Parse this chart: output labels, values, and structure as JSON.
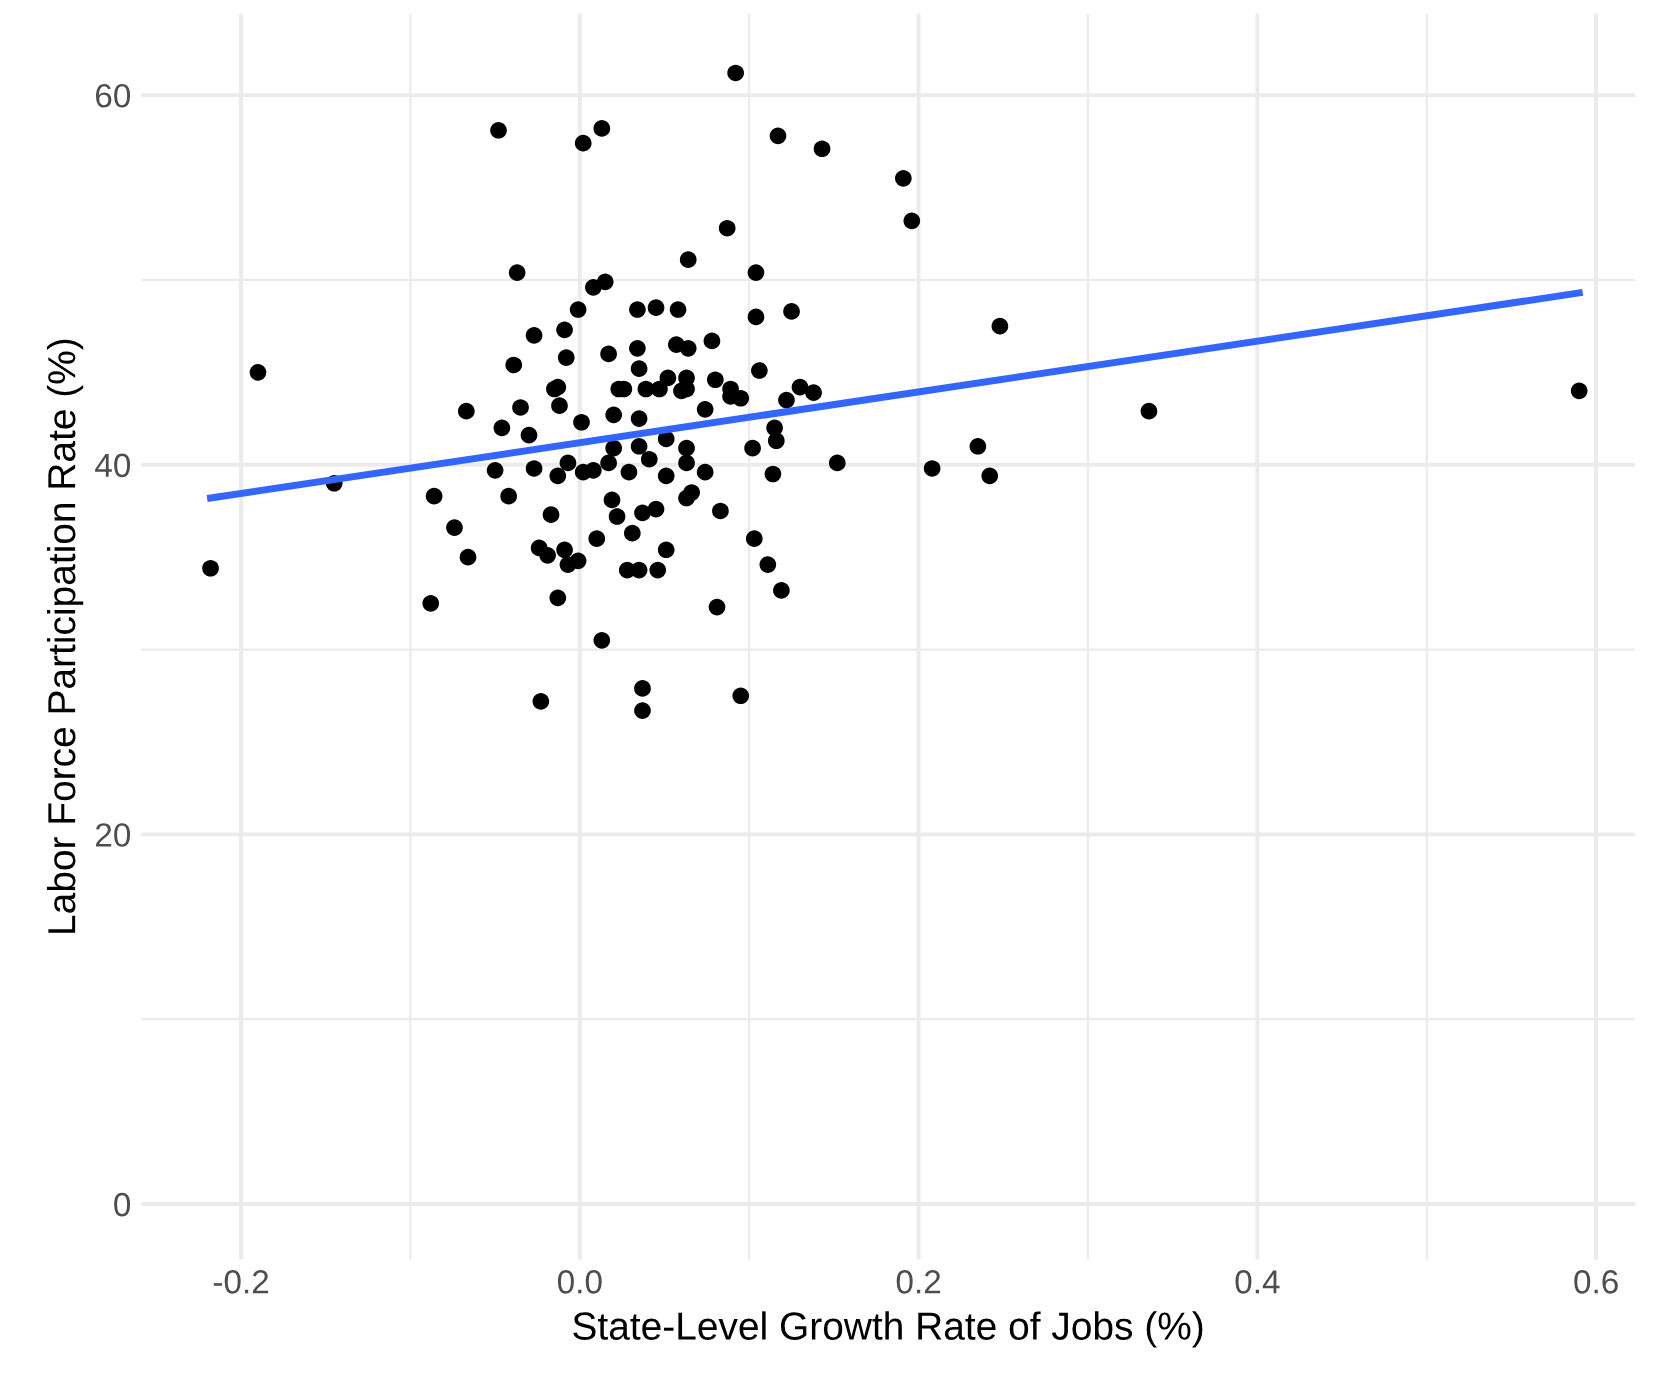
{
  "chart_data": {
    "type": "scatter",
    "xlabel": "State-Level Growth Rate of Jobs (%)",
    "ylabel": "Labor Force Participation Rate (%)",
    "xlim": [
      -0.259,
      0.623
    ],
    "ylim": [
      -3,
      64.4
    ],
    "xticks": [
      {
        "value": -0.2,
        "label": "-0.2"
      },
      {
        "value": -0.1,
        "label": null
      },
      {
        "value": 0,
        "label": "0.0"
      },
      {
        "value": 0.1,
        "label": null
      },
      {
        "value": 0.2,
        "label": "0.2"
      },
      {
        "value": 0.3,
        "label": null
      },
      {
        "value": 0.4,
        "label": "0.4"
      },
      {
        "value": 0.5,
        "label": null
      },
      {
        "value": 0.6,
        "label": "0.6"
      }
    ],
    "yticks": [
      0,
      {
        "value": 10,
        "label": null
      },
      20,
      {
        "value": 30,
        "label": null
      },
      40,
      {
        "value": 50,
        "label": null
      },
      60
    ],
    "grid": true,
    "series": [
      {
        "color": "#000000",
        "marker": "circle",
        "x": [
          -0.218,
          -0.19,
          -0.145,
          -0.067,
          -0.035,
          -0.046,
          -0.03,
          -0.05,
          -0.086,
          -0.042,
          -0.027,
          -0.013,
          -0.007,
          0.002,
          0.008,
          0.017,
          0.001,
          -0.012,
          -0.015,
          0.02,
          0.035,
          0.026,
          0.039,
          0.02,
          0.035,
          0.029,
          0.041,
          0.051,
          0.051,
          0.063,
          0.063,
          0.074,
          0.074,
          0.06,
          0.089,
          0.095,
          0.122,
          0.115,
          0.116,
          0.102,
          0.114,
          0.138,
          0.152,
          0.208,
          0.235,
          0.242,
          0.019,
          0.022,
          0.037,
          0.045,
          0.031,
          0.063,
          0.066,
          0.083,
          -0.017,
          0.01,
          -0.024,
          -0.019,
          -0.009,
          -0.007,
          -0.001,
          -0.074,
          -0.066,
          0.028,
          0.035,
          0.046,
          0.051,
          0.103,
          0.111,
          0.119,
          0.081,
          -0.088,
          -0.013,
          0.013,
          -0.023,
          0.037,
          0.037,
          0.095,
          -0.048,
          0.002,
          0.013,
          0.092,
          0.117,
          0.143,
          0.191,
          0.196,
          0.087,
          0.064,
          -0.037,
          0.008,
          0.015,
          0.104,
          -0.001,
          0.034,
          0.045,
          0.058,
          0.104,
          0.125,
          -0.027,
          -0.009,
          -0.008,
          -0.039,
          0.017,
          0.034,
          0.057,
          0.064,
          0.078,
          0.035,
          0.052,
          0.063,
          0.08,
          0.106,
          -0.013,
          0.023,
          0.047,
          0.063,
          0.089,
          0.13,
          0.248,
          0.336,
          0.59
        ],
        "values": [
          34.4,
          45.0,
          39.0,
          42.9,
          43.1,
          42.0,
          41.6,
          39.7,
          38.3,
          38.3,
          39.8,
          39.4,
          40.1,
          39.6,
          39.7,
          40.1,
          42.3,
          43.2,
          44.1,
          42.7,
          42.5,
          44.1,
          44.1,
          40.9,
          41.0,
          39.6,
          40.3,
          39.4,
          41.4,
          40.9,
          40.1,
          39.6,
          43.0,
          44.0,
          43.7,
          43.6,
          43.5,
          42.0,
          41.3,
          40.9,
          39.5,
          43.9,
          40.1,
          39.8,
          41.0,
          39.4,
          38.1,
          37.2,
          37.4,
          37.6,
          36.3,
          38.2,
          38.5,
          37.5,
          37.3,
          36.0,
          35.5,
          35.1,
          35.4,
          34.6,
          34.8,
          36.6,
          35.0,
          34.3,
          34.3,
          34.3,
          35.4,
          36.0,
          34.6,
          33.2,
          32.3,
          32.5,
          32.8,
          30.5,
          27.2,
          27.9,
          26.7,
          27.5,
          58.1,
          57.4,
          58.2,
          61.2,
          57.8,
          57.1,
          55.5,
          53.2,
          52.8,
          51.1,
          50.4,
          49.6,
          49.9,
          50.4,
          48.4,
          48.4,
          48.5,
          48.4,
          48.0,
          48.3,
          47.0,
          47.3,
          45.8,
          45.4,
          46.0,
          46.3,
          46.5,
          46.3,
          46.7,
          45.2,
          44.7,
          44.7,
          44.6,
          45.1,
          44.2,
          44.1,
          44.1,
          44.1,
          44.1,
          44.2,
          47.5,
          42.9,
          44.0
        ]
      },
      {
        "type": "line",
        "color": "#3366ff",
        "x": [
          -0.218,
          0.59
        ],
        "values": [
          38.2,
          49.3
        ]
      }
    ]
  }
}
